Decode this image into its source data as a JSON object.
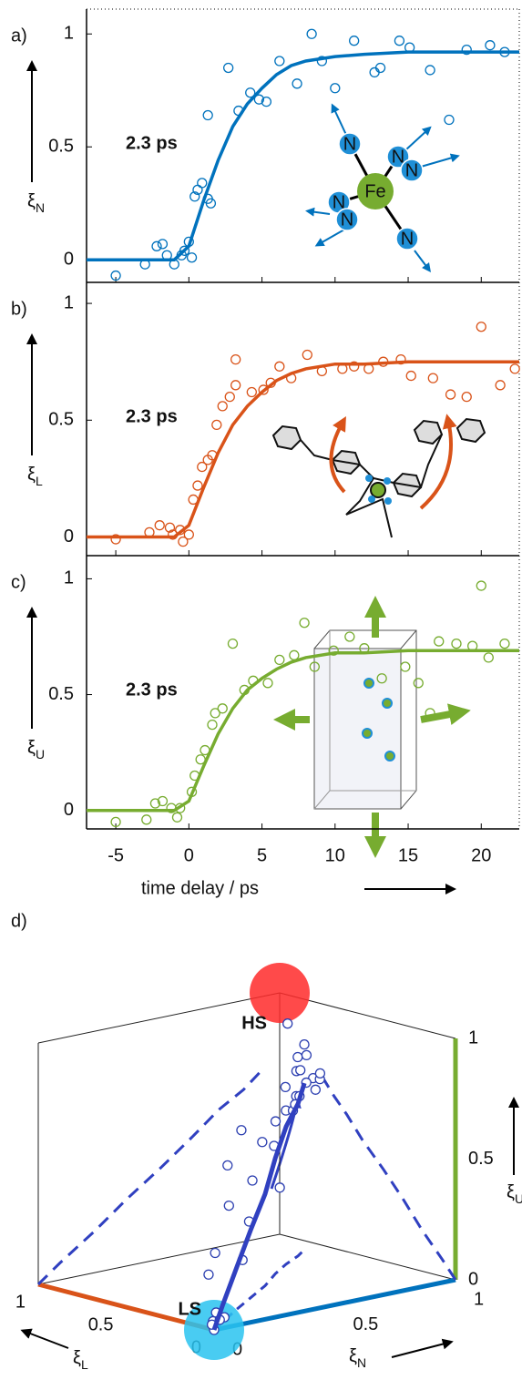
{
  "chart_data": [
    {
      "type": "scatter",
      "panel": "a)",
      "y_label": {
        "symbol": "ξ",
        "subscript": "N"
      },
      "annotation": "2.3 ps",
      "color": "#0072bd",
      "xlim": [
        -7,
        22.6
      ],
      "ylim": [
        -0.1,
        1.11
      ],
      "xticks": [
        -5,
        0,
        5,
        10,
        15,
        20
      ],
      "yticks": [
        0,
        0.5,
        1
      ],
      "points": {
        "x": [
          -5,
          -3,
          -2.2,
          -1.8,
          -1.5,
          -1,
          -0.5,
          -0.3,
          0,
          0.2,
          0.4,
          0.6,
          0.9,
          1.3,
          1.5,
          1.3,
          2.7,
          3.4,
          4.2,
          4.8,
          5.3,
          6.2,
          7.4,
          8.4,
          9.1,
          10,
          11.3,
          12.7,
          13.1,
          14.4,
          15.1,
          16.5,
          17.8,
          19,
          20.6,
          21.6
        ],
        "y": [
          -0.07,
          -0.02,
          0.06,
          0.07,
          0.02,
          -0.02,
          0.02,
          0.04,
          0.08,
          0.01,
          0.28,
          0.31,
          0.34,
          0.27,
          0.25,
          0.64,
          0.85,
          0.66,
          0.74,
          0.71,
          0.7,
          0.88,
          0.78,
          1.0,
          0.88,
          0.76,
          0.97,
          0.83,
          0.85,
          0.97,
          0.94,
          0.84,
          0.62,
          0.93,
          0.95,
          0.92
        ]
      },
      "fit": {
        "x": [
          -7,
          -2,
          -1,
          0,
          1,
          2,
          3,
          4,
          5,
          6,
          7,
          8,
          10,
          12,
          15,
          22.6
        ],
        "y": [
          0,
          0,
          0,
          0.06,
          0.26,
          0.44,
          0.59,
          0.69,
          0.76,
          0.82,
          0.86,
          0.88,
          0.9,
          0.91,
          0.92,
          0.92
        ]
      },
      "inset_labels": [
        "Fe",
        "N",
        "N",
        "N",
        "N",
        "N",
        "N"
      ]
    },
    {
      "type": "scatter",
      "panel": "b)",
      "y_label": {
        "symbol": "ξ",
        "subscript": "L"
      },
      "annotation": "2.3 ps",
      "color": "#d95319",
      "xlim": [
        -7,
        22.6
      ],
      "ylim": [
        -0.08,
        1.09
      ],
      "xticks": [
        -5,
        0,
        5,
        10,
        15,
        20
      ],
      "yticks": [
        0,
        0.5,
        1
      ],
      "points": {
        "x": [
          -5,
          -2.7,
          -2,
          -1.3,
          -1.1,
          -0.6,
          -0.4,
          0,
          0.3,
          0.6,
          0.9,
          1.3,
          1.6,
          1.9,
          2.3,
          2.8,
          3.2,
          4.3,
          5.1,
          5.6,
          6.2,
          7,
          8.1,
          9.1,
          10.5,
          11.3,
          12.3,
          13.3,
          14.5,
          15.2,
          16.7,
          17.9,
          19,
          20,
          21.3,
          22.3,
          3.2
        ],
        "y": [
          -0.01,
          0.02,
          0.05,
          0.04,
          0.01,
          0.03,
          -0.02,
          0.01,
          0.16,
          0.22,
          0.3,
          0.33,
          0.35,
          0.48,
          0.56,
          0.6,
          0.65,
          0.62,
          0.63,
          0.66,
          0.73,
          0.68,
          0.78,
          0.71,
          0.72,
          0.73,
          0.72,
          0.75,
          0.76,
          0.69,
          0.68,
          0.61,
          0.6,
          0.9,
          0.65,
          0.72,
          0.76
        ]
      },
      "fit": {
        "x": [
          -7,
          -2,
          -1,
          0,
          1,
          2,
          3,
          4,
          5,
          6,
          7,
          8,
          10,
          12,
          15,
          22.6
        ],
        "y": [
          0,
          0,
          0,
          0.05,
          0.21,
          0.36,
          0.48,
          0.56,
          0.62,
          0.67,
          0.7,
          0.72,
          0.74,
          0.74,
          0.75,
          0.75
        ]
      }
    },
    {
      "type": "scatter",
      "panel": "c)",
      "y_label": {
        "symbol": "ξ",
        "subscript": "U"
      },
      "annotation": "2.3 ps",
      "color": "#77ac30",
      "xlim": [
        -7,
        22.6
      ],
      "ylim": [
        -0.08,
        1.1
      ],
      "xticks": [
        -5,
        0,
        5,
        10,
        15,
        20
      ],
      "yticks": [
        0,
        0.5,
        1
      ],
      "x_label": "time delay / ps",
      "points": {
        "x": [
          -5,
          -2.9,
          -2.3,
          -1.8,
          -1.2,
          -0.8,
          -0.6,
          0.2,
          0.4,
          0.8,
          1.1,
          1.6,
          1.8,
          2.3,
          3,
          3.8,
          4.4,
          5.4,
          6.2,
          7.2,
          7.9,
          8.6,
          9.9,
          11,
          12,
          13.2,
          14.8,
          15.7,
          16.5,
          17.1,
          18.3,
          19.4,
          20,
          20.5,
          21.6
        ],
        "y": [
          -0.05,
          -0.04,
          0.03,
          0.04,
          0.01,
          -0.03,
          0.01,
          0.08,
          0.15,
          0.22,
          0.26,
          0.37,
          0.42,
          0.44,
          0.72,
          0.52,
          0.56,
          0.55,
          0.65,
          0.67,
          0.81,
          0.62,
          0.69,
          0.75,
          0.7,
          0.57,
          0.62,
          0.55,
          0.42,
          0.73,
          0.72,
          0.71,
          0.97,
          0.66,
          0.72
        ]
      },
      "fit": {
        "x": [
          -7,
          -2,
          -1,
          0,
          1,
          2,
          3,
          4,
          5,
          6,
          7,
          8,
          10,
          12,
          15,
          22.6
        ],
        "y": [
          0,
          0,
          0,
          0.04,
          0.19,
          0.33,
          0.44,
          0.52,
          0.57,
          0.61,
          0.64,
          0.66,
          0.68,
          0.68,
          0.69,
          0.69
        ]
      }
    },
    {
      "type": "scatter3d",
      "panel": "d)",
      "axes": {
        "L": {
          "label": {
            "symbol": "ξ",
            "subscript": "L"
          },
          "color": "#d95319",
          "ticks": [
            0,
            0.5,
            1
          ]
        },
        "N": {
          "label": {
            "symbol": "ξ",
            "subscript": "N"
          },
          "color": "#0072bd",
          "ticks": [
            0,
            0.5,
            1
          ]
        },
        "U": {
          "label": {
            "symbol": "ξ",
            "subscript": "U"
          },
          "color": "#77ac30",
          "ticks": [
            0,
            0.5,
            1
          ]
        }
      },
      "states": [
        {
          "name": "HS",
          "color": "#ff2a2a",
          "L": 1,
          "N": 1,
          "U": 1
        },
        {
          "name": "LS",
          "color": "#29c3f0",
          "L": 0,
          "N": 0,
          "U": 0
        }
      ],
      "points": {
        "color": "#2c3fb0",
        "L": [
          0,
          0.02,
          0.04,
          0.01,
          0.03,
          0.05,
          0.1,
          0.2,
          0.25,
          0.3,
          0.35,
          0.4,
          0.5,
          0.45,
          0.55,
          0.6,
          0.62,
          0.58,
          0.68,
          0.65,
          0.7,
          0.72,
          0.75,
          0.7,
          0.74,
          0.78,
          0.73,
          0.76,
          0.8,
          0.7,
          0.77,
          0.75,
          0.9,
          0.82,
          0.72
        ],
        "N": [
          0,
          0.01,
          0.02,
          0.05,
          0.03,
          0.06,
          0.05,
          0.15,
          0.3,
          0.28,
          0.4,
          0.45,
          0.42,
          0.6,
          0.6,
          0.55,
          0.7,
          0.72,
          0.75,
          0.8,
          0.85,
          0.82,
          0.9,
          0.92,
          0.88,
          0.95,
          0.97,
          0.9,
          0.94,
          0.93,
          1.0,
          0.92,
          0.96,
          0.98,
          0.86
        ],
        "U": [
          0,
          0.03,
          0.01,
          0.04,
          0.06,
          0.02,
          0.2,
          0.25,
          0.18,
          0.4,
          0.3,
          0.45,
          0.5,
          0.38,
          0.55,
          0.6,
          0.5,
          0.65,
          0.58,
          0.62,
          0.66,
          0.7,
          0.64,
          0.72,
          0.75,
          0.68,
          0.7,
          0.8,
          0.73,
          0.67,
          0.71,
          0.85,
          0.9,
          0.78,
          0.62
        ]
      },
      "trajectory": {
        "color": "#3040c0",
        "L": [
          0,
          0.075,
          0.19,
          0.3,
          0.41,
          0.53,
          0.62,
          0.69,
          0.75
        ],
        "N": [
          0,
          0.09,
          0.23,
          0.37,
          0.51,
          0.64,
          0.75,
          0.85,
          0.92
        ],
        "U": [
          0,
          0.07,
          0.17,
          0.28,
          0.38,
          0.48,
          0.57,
          0.63,
          0.69
        ]
      }
    }
  ]
}
